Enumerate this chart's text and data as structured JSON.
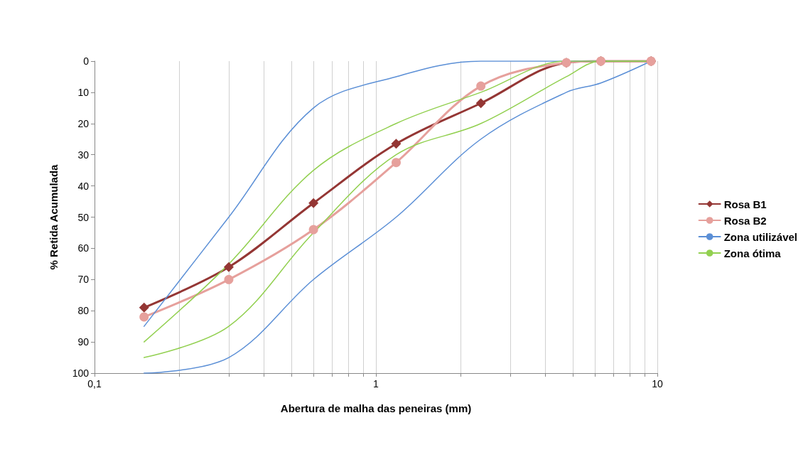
{
  "chart_data": {
    "type": "line",
    "xlabel": "Abertura de malha das peneiras (mm)",
    "ylabel": "% Retida Acumulada",
    "log": "x",
    "grid": "x",
    "legend": "right",
    "xlim": [
      0.1,
      10
    ],
    "xticks": [
      {
        "value": 0.1,
        "label": "0,1"
      },
      {
        "value": 0.2,
        "label": null
      },
      {
        "value": 0.3,
        "label": null
      },
      {
        "value": 0.4,
        "label": null
      },
      {
        "value": 0.5,
        "label": null
      },
      {
        "value": 0.6,
        "label": null
      },
      {
        "value": 0.7,
        "label": null
      },
      {
        "value": 0.8,
        "label": null
      },
      {
        "value": 0.9,
        "label": null
      },
      1,
      {
        "value": 2,
        "label": null
      },
      {
        "value": 3,
        "label": null
      },
      {
        "value": 4,
        "label": null
      },
      {
        "value": 5,
        "label": null
      },
      {
        "value": 6,
        "label": null
      },
      {
        "value": 7,
        "label": null
      },
      {
        "value": 8,
        "label": null
      },
      {
        "value": 9,
        "label": null
      },
      10
    ],
    "ylim": [
      100,
      0
    ],
    "yticks": [
      0,
      10,
      20,
      30,
      40,
      50,
      60,
      70,
      80,
      90,
      100
    ],
    "x": [
      0.15,
      0.3,
      0.6,
      1.18,
      2.36,
      4.75,
      6.3,
      9.5
    ],
    "series": [
      {
        "name": "Rosa B1",
        "color": "#943634",
        "marker": "diamond",
        "values": [
          79,
          66,
          45.5,
          26.5,
          13.5,
          0.5,
          0,
          0
        ]
      },
      {
        "name": "Rosa B2",
        "color": "#e6a09c",
        "marker": "circle",
        "values": [
          82,
          70,
          54,
          32.5,
          8,
          0.5,
          0,
          0
        ]
      },
      {
        "name": "Zona utilizável",
        "color": "#5b8fd6",
        "marker": "none",
        "values": [
          85,
          50,
          15,
          5,
          0,
          0,
          0,
          0
        ]
      },
      {
        "color": "#5b8fd6",
        "marker": "none",
        "values": [
          100,
          95,
          70,
          50,
          25,
          10,
          7,
          0
        ]
      },
      {
        "name": "Zona ótima",
        "color": "#92d050",
        "marker": "none",
        "values": [
          90,
          65,
          35,
          20,
          10,
          0,
          0,
          0
        ]
      },
      {
        "color": "#92d050",
        "marker": "none",
        "values": [
          95,
          85,
          55,
          30,
          20,
          5,
          0,
          0
        ]
      }
    ]
  }
}
